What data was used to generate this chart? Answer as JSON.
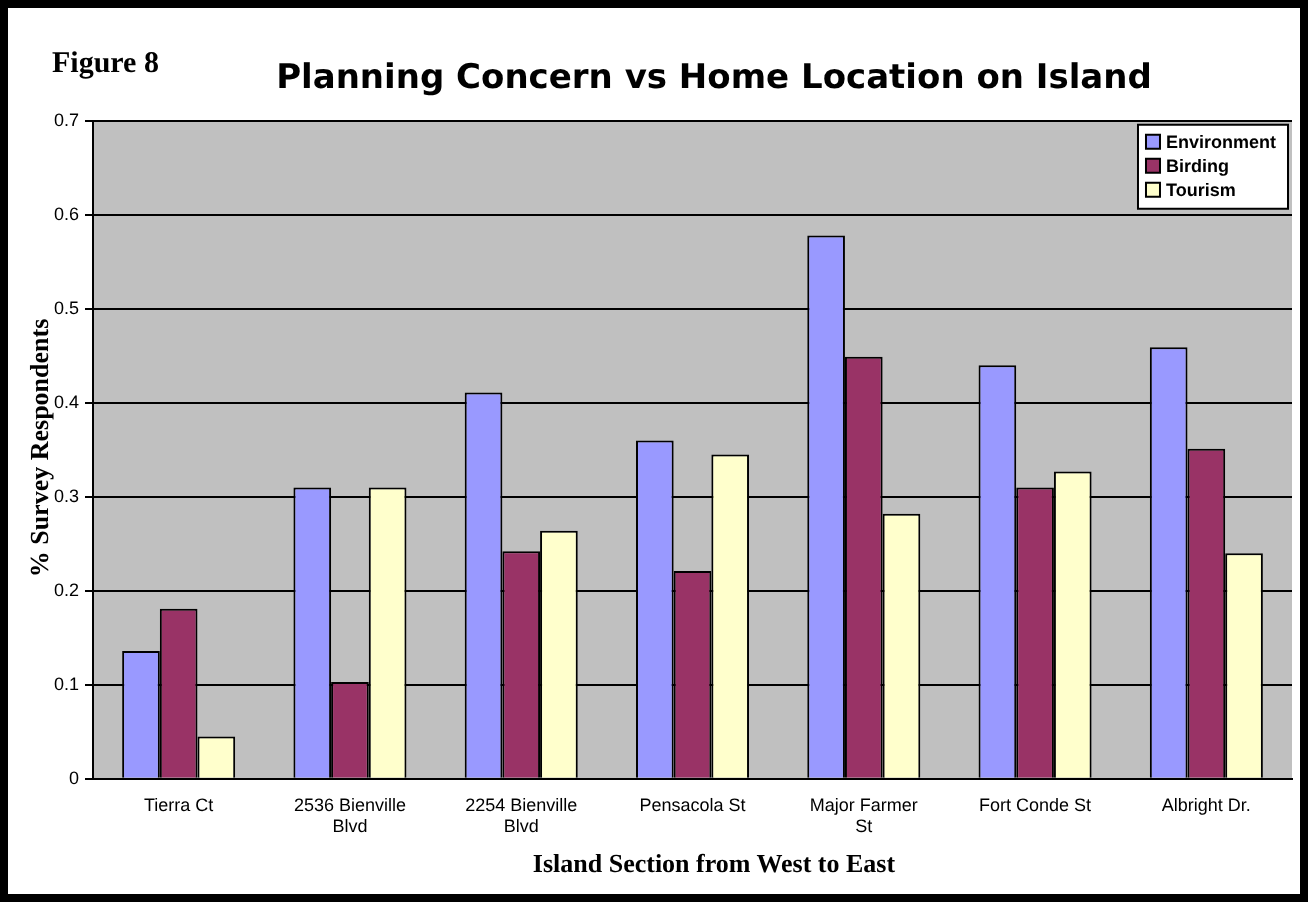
{
  "chart_data": {
    "type": "bar",
    "title": "Planning Concern vs Home Location on Island",
    "annotations": [
      "Figure 8"
    ],
    "xlabel": "Island Section from West to East",
    "ylabel": "% Survey Respondents",
    "categories": [
      "Tierra Ct",
      "2536 Bienville Blvd",
      "2254 Bienville Blvd",
      "Pensacola St",
      "Major Farmer St",
      "Fort Conde St",
      "Albright Dr."
    ],
    "series": [
      {
        "name": "Environment",
        "color": "#9999ff",
        "values": [
          0.136,
          0.31,
          0.411,
          0.36,
          0.578,
          0.44,
          0.459
        ]
      },
      {
        "name": "Birding",
        "color": "#993366",
        "values": [
          0.181,
          0.103,
          0.242,
          0.221,
          0.449,
          0.31,
          0.351
        ]
      },
      {
        "name": "Tourism",
        "color": "#ffffcc",
        "values": [
          0.045,
          0.31,
          0.264,
          0.345,
          0.282,
          0.327,
          0.24
        ]
      }
    ],
    "ylim": [
      0,
      0.7
    ],
    "yticks": [
      0,
      0.1,
      0.2,
      0.3,
      0.4,
      0.5,
      0.6,
      0.7
    ],
    "grid": "y",
    "legend": "top right"
  }
}
